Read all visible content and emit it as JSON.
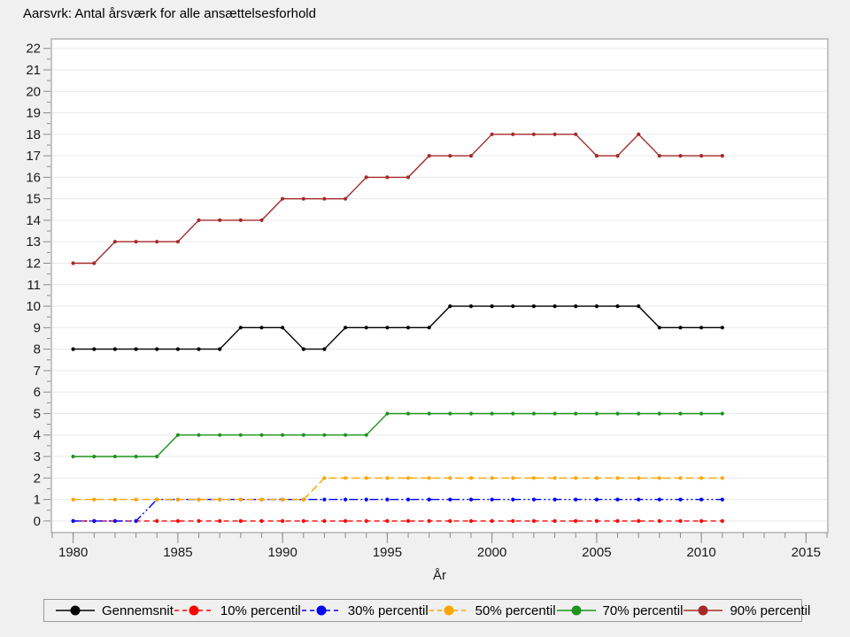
{
  "title": "Aarsvrk: Antal årsværk for alle ansættelsesforhold",
  "colors": {
    "page_background": "#f0f0f0",
    "plot_background": "#ffffff",
    "plot_border": "#c4c4c4",
    "gridline": "#e9e9e9",
    "tick": "#8a8a8a",
    "tick_label": "#1a1a1a"
  },
  "chart_data": {
    "type": "line",
    "title": "Aarsvrk: Antal årsværk for alle ansættelsesforhold",
    "xlabel": "År",
    "ylabel": "",
    "grid": "horizontal",
    "legend_position": "bottom",
    "xlim": [
      1979,
      2016
    ],
    "ylim": [
      -0.5,
      22.4
    ],
    "x_major_ticks": [
      1980,
      1985,
      1990,
      1995,
      2000,
      2005,
      2010,
      2015
    ],
    "x_minor_from": 1979,
    "x_minor_to": 2016,
    "y_ticks": [
      0,
      1,
      2,
      3,
      4,
      5,
      6,
      7,
      8,
      9,
      10,
      11,
      12,
      13,
      14,
      15,
      16,
      17,
      18,
      19,
      20,
      21,
      22
    ],
    "y_minor_step": 0.5,
    "x": [
      1980,
      1981,
      1982,
      1983,
      1984,
      1985,
      1986,
      1987,
      1988,
      1989,
      1990,
      1991,
      1992,
      1993,
      1994,
      1995,
      1996,
      1997,
      1998,
      1999,
      2000,
      2001,
      2002,
      2003,
      2004,
      2005,
      2006,
      2007,
      2008,
      2009,
      2010,
      2011
    ],
    "series": [
      {
        "name": "Gennemsnit",
        "color": "#000000",
        "dash": "",
        "values": [
          8,
          8,
          8,
          8,
          8,
          8,
          8,
          8,
          9,
          9,
          9,
          8,
          8,
          9,
          9,
          9,
          9,
          9,
          10,
          10,
          10,
          10,
          10,
          10,
          10,
          10,
          10,
          10,
          9,
          9,
          9,
          9
        ]
      },
      {
        "name": "10% percentil",
        "color": "#ff0000",
        "dash": "6,4",
        "values": [
          0,
          0,
          0,
          0,
          0,
          0,
          0,
          0,
          0,
          0,
          0,
          0,
          0,
          0,
          0,
          0,
          0,
          0,
          0,
          0,
          0,
          0,
          0,
          0,
          0,
          0,
          0,
          0,
          0,
          0,
          0,
          0
        ]
      },
      {
        "name": "30% percentil",
        "color": "#0000ff",
        "dash": "10,3,2,3,2,3",
        "values": [
          0,
          0,
          0,
          0,
          1,
          1,
          1,
          1,
          1,
          1,
          1,
          1,
          1,
          1,
          1,
          1,
          1,
          1,
          1,
          1,
          1,
          1,
          1,
          1,
          1,
          1,
          1,
          1,
          1,
          1,
          1,
          1
        ]
      },
      {
        "name": "50% percentil",
        "color": "#ffa500",
        "dash": "9,4",
        "values": [
          1,
          1,
          1,
          1,
          1,
          1,
          1,
          1,
          1,
          1,
          1,
          1,
          2,
          2,
          2,
          2,
          2,
          2,
          2,
          2,
          2,
          2,
          2,
          2,
          2,
          2,
          2,
          2,
          2,
          2,
          2,
          2
        ]
      },
      {
        "name": "70% percentil",
        "color": "#1e941e",
        "dash": "",
        "values": [
          3,
          3,
          3,
          3,
          3,
          4,
          4,
          4,
          4,
          4,
          4,
          4,
          4,
          4,
          4,
          5,
          5,
          5,
          5,
          5,
          5,
          5,
          5,
          5,
          5,
          5,
          5,
          5,
          5,
          5,
          5,
          5
        ]
      },
      {
        "name": "90% percentil",
        "color": "#a52a2a",
        "dash": "",
        "values": [
          12,
          12,
          13,
          13,
          13,
          13,
          14,
          14,
          14,
          14,
          15,
          15,
          15,
          15,
          16,
          16,
          16,
          17,
          17,
          17,
          18,
          18,
          18,
          18,
          18,
          17,
          17,
          18,
          17,
          17,
          17,
          17
        ]
      }
    ]
  }
}
